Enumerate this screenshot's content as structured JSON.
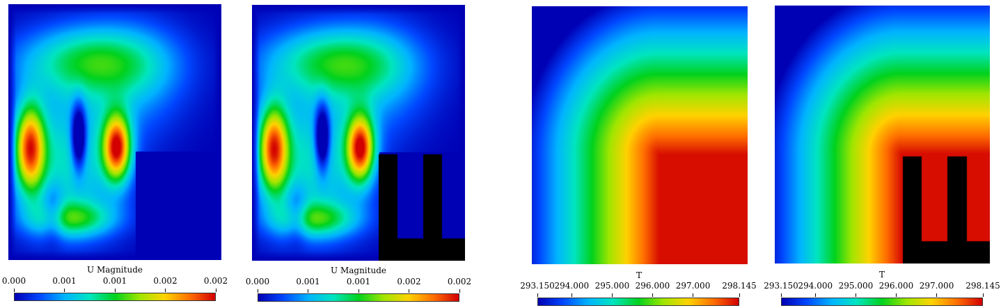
{
  "colormap": [
    "#0000b4",
    "#0047ff",
    "#00b4ff",
    "#00e5c0",
    "#00d21e",
    "#a0e600",
    "#ffd200",
    "#ff6e00",
    "#d20000"
  ],
  "chart_data": [
    {
      "type": "heatmap",
      "field": "velocity",
      "obstacle": "block",
      "colorbar": {
        "title": "U Magnitude",
        "ticks": [
          "0.000",
          "0.001",
          "0.001",
          "0.002",
          "0.002"
        ],
        "range": [
          0.0,
          0.0024
        ]
      }
    },
    {
      "type": "heatmap",
      "field": "velocity",
      "obstacle": "fins",
      "colorbar": {
        "title": "U Magnitude",
        "ticks": [
          "0.000",
          "0.001",
          "0.001",
          "0.002",
          "0.002"
        ],
        "range": [
          0.0,
          0.0024
        ]
      }
    },
    {
      "type": "heatmap",
      "field": "temperature",
      "obstacle": "block",
      "colorbar": {
        "title": "T",
        "ticks": [
          "293.150",
          "294.000",
          "295.000",
          "296.000",
          "297.000",
          "298.145"
        ],
        "tick_values": [
          293.15,
          294.0,
          295.0,
          296.0,
          297.0,
          298.145
        ],
        "range": [
          293.15,
          298.145
        ]
      }
    },
    {
      "type": "heatmap",
      "field": "temperature",
      "obstacle": "fins",
      "colorbar": {
        "title": "T",
        "ticks": [
          "293.150",
          "294.000",
          "295.000",
          "296.000",
          "297.000",
          "298.145"
        ],
        "tick_values": [
          293.15,
          294.0,
          295.0,
          296.0,
          297.0,
          298.145
        ],
        "range": [
          293.15,
          298.145
        ]
      }
    }
  ]
}
